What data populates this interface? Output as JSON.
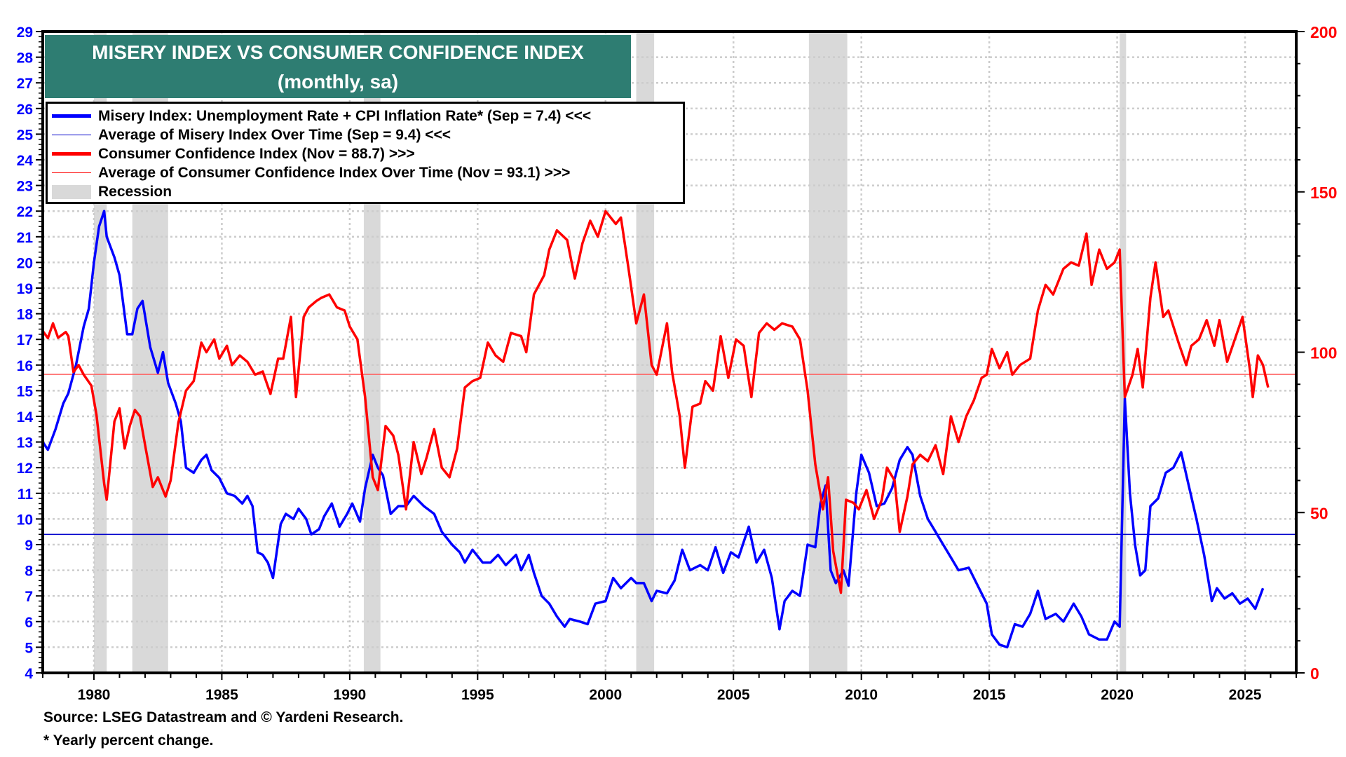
{
  "chart_data": {
    "type": "line",
    "title": "MISERY INDEX VS CONSUMER CONFIDENCE INDEX",
    "subtitle": "(monthly, sa)",
    "xlim": [
      1978.0,
      2027.0
    ],
    "ylim_left": [
      4,
      29
    ],
    "ylim_right": [
      0,
      200
    ],
    "x_ticks": [
      "1980",
      "1985",
      "1990",
      "1995",
      "2000",
      "2005",
      "2010",
      "2015",
      "2020",
      "2025"
    ],
    "y_ticks_left": [
      "4",
      "5",
      "6",
      "7",
      "8",
      "9",
      "10",
      "11",
      "12",
      "13",
      "14",
      "15",
      "16",
      "17",
      "18",
      "19",
      "20",
      "21",
      "22",
      "23",
      "24",
      "25",
      "26",
      "27",
      "28",
      "29"
    ],
    "y_ticks_right": [
      "0",
      "50",
      "100",
      "150",
      "200"
    ],
    "grid": true,
    "legend_position": "top-left",
    "legend": [
      "Misery Index: Unemployment Rate + CPI Inflation Rate* (Sep = 7.4) <<<",
      "Average of Misery Index Over Time (Sep = 9.4) <<<",
      "Consumer Confidence Index (Nov = 88.7) >>>",
      "Average of Consumer Confidence Index Over Time (Nov = 93.1) >>>",
      "Recession"
    ],
    "colors": {
      "misery": "#0000ff",
      "cci": "#ff0000",
      "recession": "#d9d9d9",
      "title_bg": "#2e7d72"
    },
    "recessions": [
      [
        1980.0,
        1980.5
      ],
      [
        1981.5,
        1982.9
      ],
      [
        1990.55,
        1991.2
      ],
      [
        2001.2,
        2001.9
      ],
      [
        2007.95,
        2009.45
      ],
      [
        2020.1,
        2020.35
      ]
    ],
    "averages": {
      "misery": 9.4,
      "cci": 93.1
    },
    "series": [
      {
        "name": "Misery Index",
        "axis": "left",
        "x": [
          1978.0,
          1978.2,
          1978.5,
          1978.8,
          1979.0,
          1979.3,
          1979.6,
          1979.8,
          1980.0,
          1980.2,
          1980.4,
          1980.5,
          1980.8,
          1981.0,
          1981.3,
          1981.5,
          1981.7,
          1981.9,
          1982.2,
          1982.5,
          1982.7,
          1982.9,
          1983.2,
          1983.4,
          1983.6,
          1983.9,
          1984.2,
          1984.4,
          1984.6,
          1984.9,
          1985.2,
          1985.5,
          1985.8,
          1986.0,
          1986.2,
          1986.4,
          1986.6,
          1986.8,
          1987.0,
          1987.3,
          1987.5,
          1987.8,
          1988.0,
          1988.3,
          1988.5,
          1988.8,
          1989.0,
          1989.3,
          1989.6,
          1989.9,
          1990.1,
          1990.4,
          1990.6,
          1990.9,
          1991.1,
          1991.3,
          1991.6,
          1991.9,
          1992.2,
          1992.5,
          1992.9,
          1993.3,
          1993.6,
          1994.0,
          1994.3,
          1994.5,
          1994.8,
          1995.2,
          1995.5,
          1995.8,
          1996.1,
          1996.5,
          1996.7,
          1997.0,
          1997.2,
          1997.5,
          1997.8,
          1998.1,
          1998.4,
          1998.6,
          1999.0,
          1999.3,
          1999.6,
          2000.0,
          2000.3,
          2000.6,
          2001.0,
          2001.2,
          2001.5,
          2001.8,
          2002.0,
          2002.4,
          2002.7,
          2003.0,
          2003.3,
          2003.7,
          2004.0,
          2004.3,
          2004.6,
          2004.9,
          2005.2,
          2005.6,
          2005.9,
          2006.2,
          2006.5,
          2006.8,
          2007.0,
          2007.3,
          2007.6,
          2007.9,
          2008.2,
          2008.4,
          2008.6,
          2008.8,
          2009.0,
          2009.3,
          2009.5,
          2009.8,
          2010.0,
          2010.3,
          2010.6,
          2010.9,
          2011.2,
          2011.5,
          2011.8,
          2012.0,
          2012.3,
          2012.6,
          2012.9,
          2013.2,
          2013.5,
          2013.8,
          2014.2,
          2014.6,
          2014.9,
          2015.1,
          2015.4,
          2015.7,
          2016.0,
          2016.3,
          2016.6,
          2016.9,
          2017.2,
          2017.6,
          2017.9,
          2018.3,
          2018.6,
          2018.9,
          2019.3,
          2019.6,
          2019.9,
          2020.1,
          2020.3,
          2020.5,
          2020.7,
          2020.9,
          2021.1,
          2021.3,
          2021.6,
          2021.9,
          2022.2,
          2022.5,
          2022.8,
          2023.1,
          2023.4,
          2023.7,
          2023.9,
          2024.2,
          2024.5,
          2024.8,
          2025.1,
          2025.4,
          2025.7
        ],
        "values": [
          13.0,
          12.7,
          13.5,
          14.5,
          14.9,
          16.0,
          17.5,
          18.2,
          20.0,
          21.4,
          22.0,
          21.0,
          20.2,
          19.5,
          17.2,
          17.2,
          18.2,
          18.5,
          16.7,
          15.7,
          16.5,
          15.3,
          14.5,
          13.8,
          12.0,
          11.8,
          12.3,
          12.5,
          11.9,
          11.6,
          11.0,
          10.9,
          10.6,
          10.9,
          10.5,
          8.7,
          8.6,
          8.3,
          7.7,
          9.8,
          10.2,
          10.0,
          10.4,
          10.0,
          9.4,
          9.6,
          10.1,
          10.6,
          9.7,
          10.2,
          10.6,
          9.9,
          11.2,
          12.5,
          12.0,
          11.7,
          10.2,
          10.5,
          10.5,
          10.9,
          10.5,
          10.2,
          9.5,
          9.0,
          8.7,
          8.3,
          8.8,
          8.3,
          8.3,
          8.6,
          8.2,
          8.6,
          8.0,
          8.6,
          7.9,
          7.0,
          6.7,
          6.2,
          5.8,
          6.1,
          6.0,
          5.9,
          6.7,
          6.8,
          7.7,
          7.3,
          7.7,
          7.5,
          7.5,
          6.8,
          7.2,
          7.1,
          7.6,
          8.8,
          8.0,
          8.2,
          8.0,
          8.9,
          7.9,
          8.7,
          8.5,
          9.7,
          8.3,
          8.8,
          7.7,
          5.7,
          6.8,
          7.2,
          7.0,
          9.0,
          8.9,
          10.6,
          11.3,
          8.0,
          7.5,
          8.0,
          7.4,
          11.0,
          12.5,
          11.8,
          10.5,
          10.6,
          11.2,
          12.3,
          12.8,
          12.5,
          10.9,
          10.0,
          9.5,
          9.0,
          8.5,
          8.0,
          8.1,
          7.3,
          6.7,
          5.5,
          5.1,
          5.0,
          5.9,
          5.8,
          6.3,
          7.2,
          6.1,
          6.3,
          6.0,
          6.7,
          6.2,
          5.5,
          5.3,
          5.3,
          6.0,
          5.8,
          14.7,
          11.0,
          9.0,
          7.8,
          8.0,
          10.5,
          10.8,
          11.8,
          12.0,
          12.6,
          11.3,
          10.0,
          8.6,
          6.8,
          7.3,
          6.9,
          7.1,
          6.7,
          6.9,
          6.5,
          7.3
        ]
      },
      {
        "name": "Consumer Confidence Index",
        "axis": "right",
        "x": [
          1978.0,
          1978.2,
          1978.4,
          1978.6,
          1978.9,
          1979.0,
          1979.2,
          1979.4,
          1979.6,
          1979.9,
          1980.1,
          1980.4,
          1980.5,
          1980.8,
          1981.0,
          1981.2,
          1981.4,
          1981.6,
          1981.8,
          1982.0,
          1982.3,
          1982.5,
          1982.8,
          1983.0,
          1983.3,
          1983.6,
          1983.9,
          1984.2,
          1984.4,
          1984.7,
          1984.9,
          1985.2,
          1985.4,
          1985.7,
          1986.0,
          1986.3,
          1986.6,
          1986.9,
          1987.2,
          1987.4,
          1987.7,
          1987.9,
          1988.2,
          1988.4,
          1988.7,
          1988.9,
          1989.2,
          1989.5,
          1989.8,
          1990.0,
          1990.3,
          1990.6,
          1990.9,
          1991.1,
          1991.4,
          1991.7,
          1991.9,
          1992.2,
          1992.5,
          1992.8,
          1993.0,
          1993.3,
          1993.6,
          1993.9,
          1994.2,
          1994.5,
          1994.8,
          1995.1,
          1995.4,
          1995.7,
          1996.0,
          1996.3,
          1996.7,
          1996.9,
          1997.2,
          1997.6,
          1997.8,
          1998.1,
          1998.5,
          1998.8,
          1999.1,
          1999.4,
          1999.7,
          2000.0,
          2000.4,
          2000.6,
          2000.9,
          2001.2,
          2001.5,
          2001.8,
          2002.0,
          2002.4,
          2002.6,
          2002.9,
          2003.1,
          2003.4,
          2003.7,
          2003.9,
          2004.2,
          2004.5,
          2004.8,
          2005.1,
          2005.4,
          2005.7,
          2006.0,
          2006.3,
          2006.6,
          2006.9,
          2007.3,
          2007.6,
          2007.9,
          2008.2,
          2008.5,
          2008.7,
          2008.9,
          2009.2,
          2009.4,
          2009.7,
          2009.9,
          2010.2,
          2010.5,
          2010.8,
          2011.0,
          2011.3,
          2011.5,
          2011.8,
          2012.0,
          2012.3,
          2012.6,
          2012.9,
          2013.2,
          2013.5,
          2013.8,
          2014.1,
          2014.4,
          2014.7,
          2014.9,
          2015.1,
          2015.4,
          2015.7,
          2015.9,
          2016.2,
          2016.6,
          2016.9,
          2017.2,
          2017.5,
          2017.9,
          2018.2,
          2018.5,
          2018.8,
          2019.0,
          2019.3,
          2019.6,
          2019.9,
          2020.1,
          2020.3,
          2020.6,
          2020.8,
          2021.0,
          2021.3,
          2021.5,
          2021.8,
          2022.0,
          2022.4,
          2022.7,
          2022.9,
          2023.2,
          2023.5,
          2023.8,
          2024.0,
          2024.3,
          2024.6,
          2024.9,
          2025.2,
          2025.3,
          2025.5,
          2025.7,
          2025.9
        ],
        "values": [
          106.6,
          104.4,
          109,
          104.5,
          106.3,
          105,
          93.8,
          96,
          93,
          89.6,
          80.5,
          59,
          54,
          78.4,
          82.5,
          70,
          77,
          82,
          80,
          71,
          58,
          61,
          55,
          60,
          78,
          88,
          91,
          103,
          100,
          104,
          98,
          102,
          96,
          99,
          97,
          93,
          94,
          87,
          98,
          98,
          111,
          86,
          111,
          114,
          116,
          117,
          118,
          114,
          113,
          108,
          104,
          86,
          61,
          57,
          77,
          74,
          68,
          51,
          72,
          62,
          67,
          76,
          64,
          61,
          70,
          89,
          91,
          92,
          103,
          99,
          97,
          106,
          105,
          100,
          118,
          124,
          132,
          138,
          135,
          123,
          134,
          141,
          136,
          144,
          140,
          142,
          126,
          109,
          118,
          96,
          93,
          109,
          94,
          80,
          64,
          83,
          84,
          91,
          88,
          105,
          92,
          104,
          102,
          86,
          106,
          109,
          107,
          109,
          108,
          104,
          88,
          65,
          51,
          61,
          38,
          25,
          54,
          53,
          51,
          57,
          48,
          54,
          64,
          60,
          44,
          55,
          65,
          68,
          66,
          71,
          62,
          80,
          72,
          80,
          85,
          92,
          93,
          101,
          95,
          100,
          93,
          96,
          98,
          113,
          121,
          118,
          126,
          128,
          127,
          137,
          121,
          132,
          126,
          128,
          132,
          86,
          93,
          101,
          89,
          117,
          128,
          111,
          113,
          103,
          96,
          102,
          104,
          110,
          102,
          110,
          97,
          104,
          111,
          94,
          86,
          99,
          96,
          89
        ]
      }
    ]
  },
  "title": {
    "line1": "MISERY INDEX VS CONSUMER CONFIDENCE INDEX",
    "line2": "(monthly, sa)"
  },
  "footer": {
    "source": "Source: LSEG Datastream and © Yardeni Research.",
    "note": "* Yearly percent change."
  }
}
